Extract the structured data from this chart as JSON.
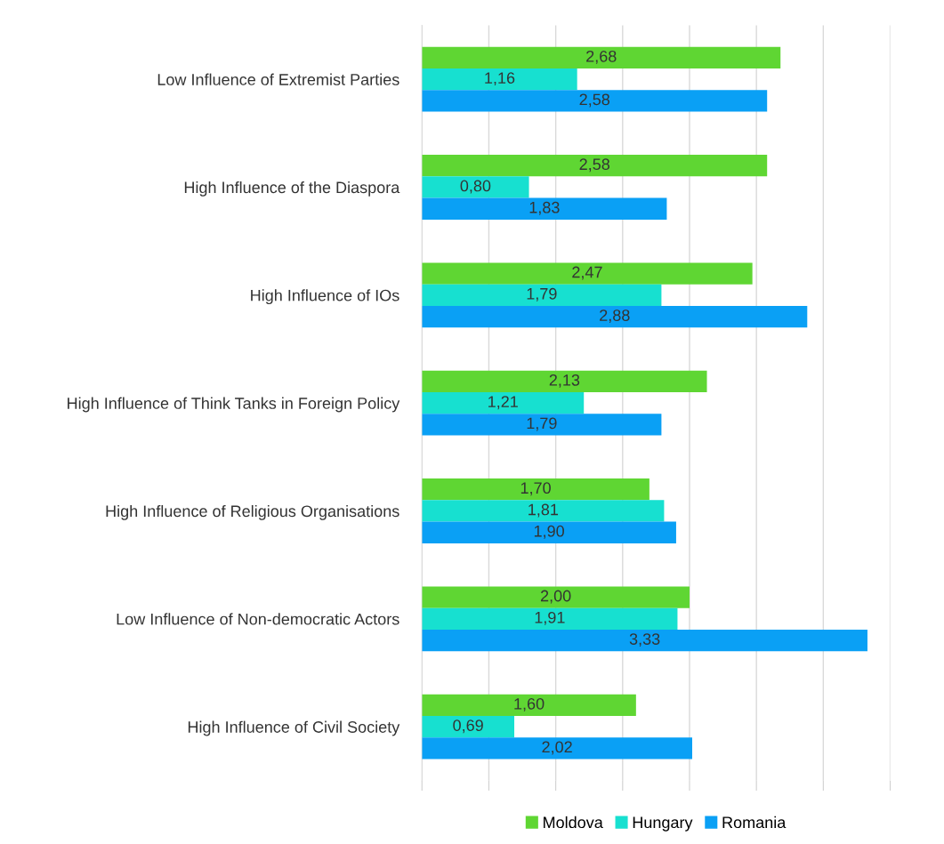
{
  "chart_data": {
    "type": "bar",
    "orientation": "horizontal",
    "categories": [
      "Low Influence of Extremist Parties",
      "High Influence of the Diaspora",
      "High Influence of IOs",
      "High Influence of Think Tanks in Foreign Policy",
      "High Influence of Religious Organisations",
      "Low Influence of Non-democratic Actors",
      "High Influence of Civil Society"
    ],
    "series": [
      {
        "name": "Moldova",
        "color": "#5fd633",
        "values": [
          2.68,
          2.58,
          2.47,
          2.13,
          1.7,
          2.0,
          1.6
        ],
        "value_labels": [
          "2,68",
          "2,58",
          "2,47",
          "2,13",
          "1,70",
          "2,00",
          "1,60"
        ]
      },
      {
        "name": "Hungary",
        "color": "#17e0d0",
        "values": [
          1.16,
          0.8,
          1.79,
          1.21,
          1.81,
          1.91,
          0.69
        ],
        "value_labels": [
          "1,16",
          "0,80",
          "1,79",
          "1,21",
          "1,81",
          "1,91",
          "0,69"
        ]
      },
      {
        "name": "Romania",
        "color": "#0aa0f5",
        "values": [
          2.58,
          1.83,
          2.88,
          1.79,
          1.9,
          3.33,
          2.02
        ],
        "value_labels": [
          "2,58",
          "1,83",
          "2,88",
          "1,79",
          "1,90",
          "3,33",
          "2,02"
        ]
      }
    ],
    "xlim": [
      0,
      3.5
    ],
    "xticks": [
      {
        "value": 0,
        "label": null
      },
      {
        "value": 0.5,
        "label": null
      },
      {
        "value": 1,
        "label": null
      },
      {
        "value": 1.5,
        "label": null
      },
      {
        "value": 2,
        "label": null
      },
      {
        "value": 2.5,
        "label": null
      },
      {
        "value": 3,
        "label": null
      },
      {
        "value": 3.5,
        "label": null
      }
    ],
    "grid": "x",
    "legend": "bottom",
    "tick_labels": "y"
  }
}
